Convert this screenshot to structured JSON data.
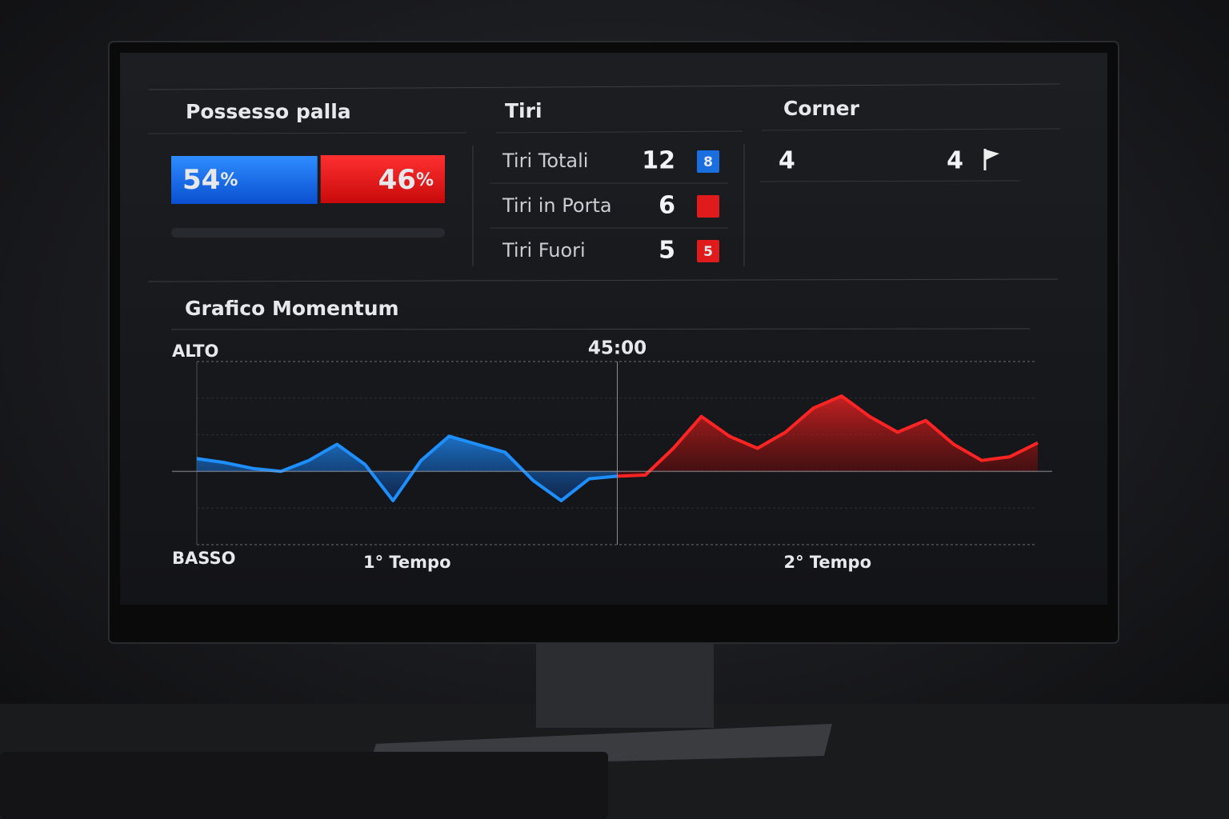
{
  "possession": {
    "title": "Possesso palla",
    "home": {
      "value": 54,
      "unit": "%"
    },
    "away": {
      "value": 46,
      "unit": "%"
    }
  },
  "shots": {
    "title": "Tiri",
    "rows": [
      {
        "label": "Tiri Totali",
        "value": 12,
        "badge": "8"
      },
      {
        "label": "Tiri in Porta",
        "value": 6
      },
      {
        "label": "Tiri Fuori",
        "value": 5,
        "badge": "5"
      }
    ]
  },
  "corners": {
    "title": "Corner",
    "home": 4,
    "away": 4
  },
  "chart_data": {
    "type": "area",
    "title": "Grafico Momentum",
    "marker": {
      "value": 45,
      "label": "45:00"
    },
    "halves": [
      "1° Tempo",
      "2° Tempo"
    ],
    "x": [
      0,
      3,
      6,
      9,
      12,
      15,
      18,
      21,
      24,
      27,
      30,
      33,
      36,
      39,
      42,
      45,
      48,
      51,
      54,
      57,
      60,
      63,
      66,
      69,
      72,
      75,
      78,
      81,
      84,
      87,
      90
    ],
    "xlim": [
      0,
      90
    ],
    "ylim": [
      -2,
      3
    ],
    "yticks": [
      {
        "value": 3,
        "label": "ALTO"
      },
      {
        "value": -2,
        "label": "BASSO"
      }
    ],
    "series": [
      {
        "color": "#1e8fff",
        "values": [
          0.35,
          0.24,
          0.08,
          0,
          0.3,
          0.74,
          0.19,
          -0.8,
          0.3,
          0.96,
          0.74,
          0.52,
          -0.25,
          -0.8,
          -0.2,
          -0.13,
          null,
          null,
          null,
          null,
          null,
          null,
          null,
          null,
          null,
          null,
          null,
          null,
          null,
          null,
          null
        ]
      },
      {
        "color": "#ff2424",
        "values": [
          null,
          null,
          null,
          null,
          null,
          null,
          null,
          null,
          null,
          null,
          null,
          null,
          null,
          null,
          null,
          -0.13,
          -0.1,
          0.63,
          1.5,
          0.96,
          0.63,
          1.07,
          1.73,
          2.06,
          1.5,
          1.07,
          1.39,
          0.74,
          0.3,
          0.4,
          0.78
        ]
      }
    ]
  }
}
